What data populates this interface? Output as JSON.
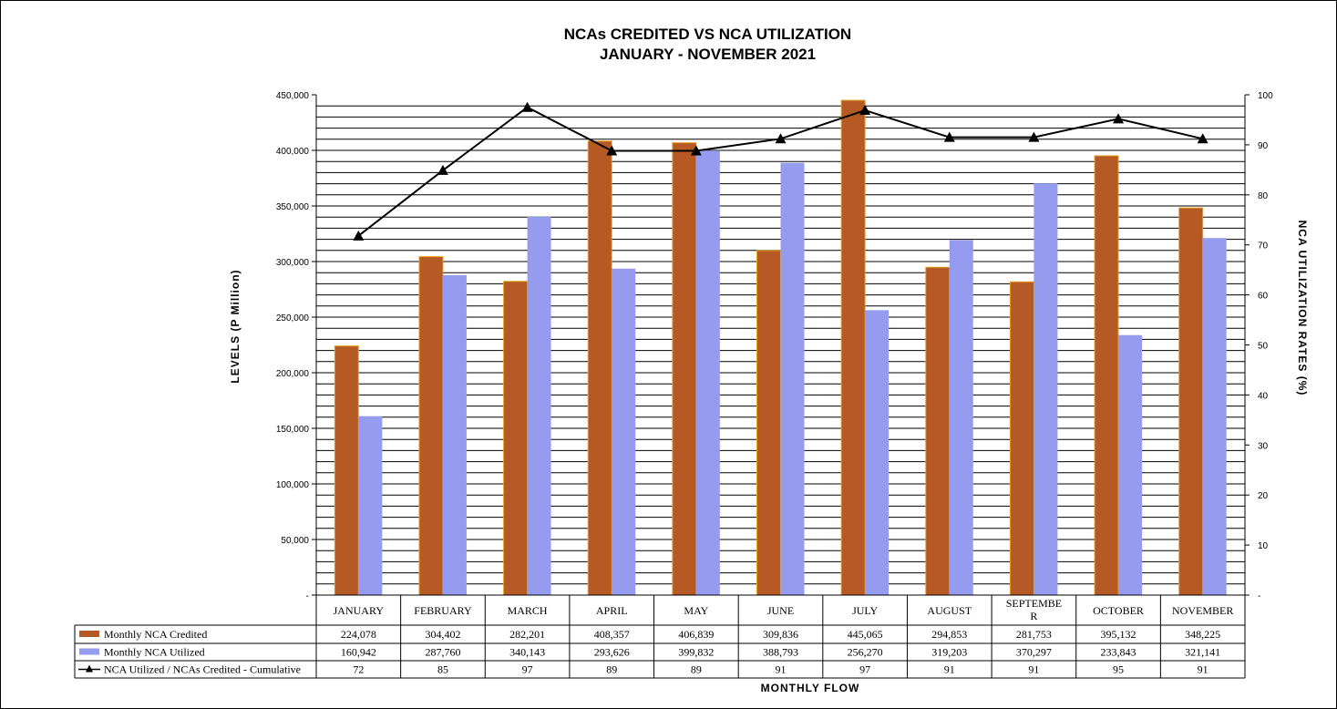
{
  "chart_data": {
    "type": "bar",
    "title": "NCAs CREDITED VS NCA UTILIZATION",
    "subtitle": "JANUARY  - NOVEMBER 2021",
    "xlabel": "MONTHLY FLOW",
    "ylabel": "LEVELS  (P Million)",
    "y2label": "NCA UTILIZATION RATES (%)",
    "ylim": [
      0,
      450000
    ],
    "y2lim": [
      0,
      100
    ],
    "y_ticks": [
      "-",
      "50,000",
      "100,000",
      "150,000",
      "200,000",
      "250,000",
      "300,000",
      "350,000",
      "400,000",
      "450,000"
    ],
    "y2_ticks": [
      "-",
      "10",
      "20",
      "30",
      "40",
      "50",
      "60",
      "70",
      "80",
      "90",
      "100"
    ],
    "grid": true,
    "legend": "data-table-left",
    "categories": [
      "JANUARY",
      "FEBRUARY",
      "MARCH",
      "APRIL",
      "MAY",
      "JUNE",
      "JULY",
      "AUGUST",
      "SEPTEMBER",
      "OCTOBER",
      "NOVEMBER"
    ],
    "category_display": [
      "JANUARY",
      "FEBRUARY",
      "MARCH",
      "APRIL",
      "MAY",
      "JUNE",
      "JULY",
      "AUGUST",
      "SEPTEMBE\nR",
      "OCTOBER",
      "NOVEMBER"
    ],
    "series": [
      {
        "name": "Monthly NCA Credited",
        "type": "bar",
        "color": "#B55A24",
        "values": [
          224078,
          304402,
          282201,
          408357,
          406839,
          309836,
          445065,
          294853,
          281753,
          395132,
          348225
        ],
        "labels": [
          "224,078",
          "304,402",
          "282,201",
          "408,357",
          "406,839",
          "309,836",
          "445,065",
          "294,853",
          "281,753",
          "395,132",
          "348,225"
        ]
      },
      {
        "name": "Monthly NCA Utilized",
        "type": "bar",
        "color": "#959CF0",
        "values": [
          160942,
          287760,
          340143,
          293626,
          399832,
          388793,
          256270,
          319203,
          370297,
          233843,
          321141
        ],
        "labels": [
          "160,942",
          "287,760",
          "340,143",
          "293,626",
          "399,832",
          "388,793",
          "256,270",
          "319,203",
          "370,297",
          "233,843",
          "321,141"
        ]
      },
      {
        "name": "NCA Utilized / NCAs Credited - Cumulative",
        "type": "line",
        "axis": "y2",
        "color": "#000000",
        "marker": "triangle",
        "values": [
          72,
          85,
          97,
          89,
          89,
          91,
          97,
          91,
          91,
          95,
          91
        ],
        "plot_values": [
          71.8,
          84.9,
          97.5,
          88.8,
          88.8,
          91.2,
          96.9,
          91.5,
          91.5,
          95.2,
          91.2
        ],
        "labels": [
          "72",
          "85",
          "97",
          "89",
          "89",
          "91",
          "97",
          "91",
          "91",
          "95",
          "91"
        ]
      }
    ]
  }
}
